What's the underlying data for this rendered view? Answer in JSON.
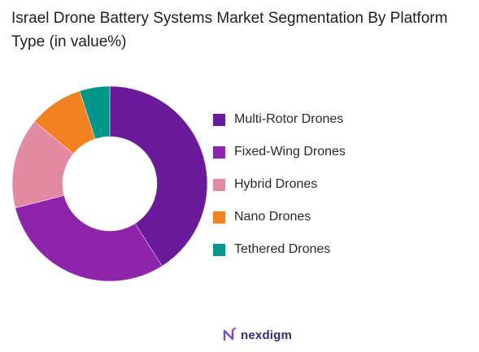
{
  "chart_data": {
    "type": "pie",
    "title": "Israel Drone Battery Systems Market Segmentation By Platform Type (in value%)",
    "categories": [
      "Multi-Rotor Drones",
      "Fixed-Wing Drones",
      "Hybrid Drones",
      "Nano Drones",
      "Tethered Drones"
    ],
    "values": [
      41,
      30,
      15,
      9,
      5
    ],
    "colors": [
      "#6a1b9a",
      "#8e24aa",
      "#e28aa2",
      "#f28121",
      "#00968a"
    ],
    "donut": true,
    "legend_position": "right"
  },
  "brand": {
    "name": "nexdigm",
    "icon": "nexdigm-logo-icon"
  }
}
